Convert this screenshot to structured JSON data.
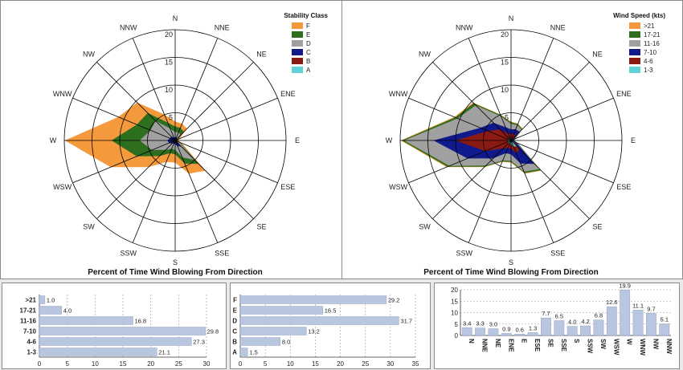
{
  "colors": {
    "F": "#f59a3c",
    "E": "#2e6f1f",
    "D": "#a0a0a0",
    "C": "#101a8c",
    "B": "#8b1a12",
    "A": "#5fd3d8",
    "bar": "#b8c6e0",
    "grid": "#000000"
  },
  "directions": [
    "N",
    "NNE",
    "NE",
    "ENE",
    "E",
    "ESE",
    "SE",
    "SSE",
    "S",
    "SSW",
    "SW",
    "WSW",
    "W",
    "WNW",
    "NW",
    "NNW"
  ],
  "ring_labels": [
    "5",
    "10",
    "15",
    "20"
  ],
  "chart_data": [
    {
      "type": "area",
      "polar": true,
      "title": "Percent of Time Wind Blowing From Direction",
      "legend_title": "Stability Class",
      "legend_position": "top-right",
      "rmax": 20,
      "directions": [
        "N",
        "NNE",
        "NE",
        "ENE",
        "E",
        "ESE",
        "SE",
        "SSE",
        "S",
        "SSW",
        "SW",
        "WSW",
        "W",
        "WNW",
        "NW",
        "NNW"
      ],
      "series": [
        {
          "name": "F",
          "color": "F",
          "values": [
            3.4,
            3.3,
            3.0,
            0.9,
            0.6,
            1.3,
            7.7,
            6.5,
            4.0,
            4.2,
            6.8,
            12.6,
            19.9,
            11.1,
            9.7,
            5.1
          ]
        },
        {
          "name": "E",
          "color": "E",
          "values": [
            2.5,
            2.5,
            2.2,
            0.6,
            0.4,
            1.0,
            6.0,
            4.5,
            2.5,
            2.5,
            4.0,
            7.5,
            11.5,
            7.5,
            7.0,
            3.5
          ]
        },
        {
          "name": "D",
          "color": "D",
          "values": [
            1.5,
            1.6,
            1.4,
            0.4,
            0.3,
            0.8,
            5.0,
            3.3,
            1.7,
            1.6,
            2.4,
            4.5,
            6.4,
            4.8,
            5.0,
            2.3
          ]
        },
        {
          "name": "C",
          "color": "C",
          "values": [
            0.6,
            0.6,
            0.6,
            0.3,
            0.2,
            0.4,
            1.6,
            1.1,
            0.7,
            0.6,
            0.8,
            1.2,
            1.4,
            1.0,
            1.0,
            0.6
          ]
        },
        {
          "name": "B",
          "color": "B",
          "values": [
            0.3,
            0.3,
            0.3,
            0.2,
            0.1,
            0.2,
            0.5,
            0.4,
            0.3,
            0.3,
            0.3,
            0.4,
            0.4,
            0.3,
            0.3,
            0.3
          ]
        },
        {
          "name": "A",
          "color": "A",
          "values": [
            0.1,
            0.1,
            0.1,
            0.1,
            0.1,
            0.1,
            0.1,
            0.1,
            0.1,
            0.1,
            0.1,
            0.1,
            0.1,
            0.1,
            0.1,
            0.1
          ]
        }
      ]
    },
    {
      "type": "area",
      "polar": true,
      "title": "Percent of Time Wind Blowing From Direction",
      "legend_title": "Wind Speed (kts)",
      "legend_position": "top-right",
      "rmax": 20,
      "directions": [
        "N",
        "NNE",
        "NE",
        "ENE",
        "E",
        "ESE",
        "SE",
        "SSE",
        "S",
        "SSW",
        "SW",
        "WSW",
        "W",
        "WNW",
        "NW",
        "NNW"
      ],
      "series": [
        {
          "name": ">21",
          "color": "F",
          "values": [
            3.4,
            3.3,
            3.0,
            0.9,
            0.6,
            1.3,
            7.7,
            6.5,
            4.0,
            4.2,
            6.8,
            12.6,
            19.9,
            11.1,
            9.7,
            5.1
          ]
        },
        {
          "name": "17-21",
          "color": "E",
          "values": [
            3.3,
            3.2,
            2.9,
            0.9,
            0.6,
            1.3,
            7.6,
            6.4,
            3.9,
            4.1,
            6.7,
            12.4,
            19.7,
            10.9,
            9.5,
            5.0
          ]
        },
        {
          "name": "11-16",
          "color": "D",
          "values": [
            3.0,
            3.0,
            2.7,
            0.8,
            0.6,
            1.2,
            7.3,
            6.1,
            3.7,
            3.9,
            6.4,
            12.0,
            19.3,
            10.4,
            9.0,
            4.7
          ]
        },
        {
          "name": "7-10",
          "color": "C",
          "values": [
            2.0,
            2.2,
            2.2,
            0.6,
            0.5,
            1.0,
            6.0,
            4.5,
            2.5,
            2.5,
            4.6,
            8.5,
            14.0,
            6.0,
            4.5,
            2.6
          ]
        },
        {
          "name": "4-6",
          "color": "B",
          "values": [
            1.2,
            1.3,
            1.2,
            0.4,
            0.3,
            0.6,
            2.2,
            2.5,
            1.5,
            1.5,
            2.0,
            5.0,
            10.0,
            4.5,
            2.8,
            1.3
          ]
        },
        {
          "name": "1-3",
          "color": "A",
          "values": [
            0.4,
            0.4,
            0.5,
            0.3,
            0.3,
            0.4,
            1.5,
            1.2,
            0.6,
            0.6,
            0.7,
            0.6,
            0.5,
            0.5,
            0.5,
            0.4
          ]
        }
      ]
    },
    {
      "type": "bar",
      "orientation": "horizontal",
      "categories": [
        ">21",
        "17-21",
        "11-16",
        "7-10",
        "4-6",
        "1-3"
      ],
      "values": [
        1.0,
        4.0,
        16.8,
        29.8,
        27.3,
        21.1
      ],
      "labels": [
        "1.0",
        "4.0",
        "16.8",
        "29.8",
        "27.3",
        "21.1"
      ],
      "xlim": [
        0,
        30
      ],
      "ticks": [
        "0",
        "5",
        "10",
        "15",
        "20",
        "25",
        "30"
      ],
      "grid": true
    },
    {
      "type": "bar",
      "orientation": "horizontal",
      "categories": [
        "F",
        "E",
        "D",
        "C",
        "B",
        "A"
      ],
      "values": [
        29.2,
        16.5,
        31.7,
        13.2,
        8.0,
        1.5
      ],
      "labels": [
        "29.2",
        "16.5",
        "31.7",
        "13.2",
        "8.0",
        "1.5"
      ],
      "xlim": [
        0,
        35
      ],
      "ticks": [
        "0",
        "5",
        "10",
        "15",
        "20",
        "25",
        "30",
        "35"
      ],
      "grid": true
    },
    {
      "type": "bar",
      "orientation": "vertical",
      "categories": [
        "N",
        "NNE",
        "NE",
        "ENE",
        "E",
        "ESE",
        "SE",
        "SSE",
        "S",
        "SSW",
        "SW",
        "WSW",
        "W",
        "WNW",
        "NW",
        "NNW"
      ],
      "values": [
        3.4,
        3.3,
        3.0,
        0.9,
        0.6,
        1.3,
        7.7,
        6.5,
        4.0,
        4.2,
        6.8,
        12.6,
        19.9,
        11.1,
        9.7,
        5.1
      ],
      "labels": [
        "3.4",
        "3.3",
        "3.0",
        "0.9",
        "0.6",
        "1.3",
        "7.7",
        "6.5",
        "4.0",
        "4.2",
        "6.8",
        "12.6",
        "19.9",
        "11.1",
        "9.7",
        "5.1"
      ],
      "ylim": [
        0,
        20
      ],
      "ticks": [
        "0",
        "5",
        "10",
        "15",
        "20"
      ],
      "grid": true
    }
  ]
}
